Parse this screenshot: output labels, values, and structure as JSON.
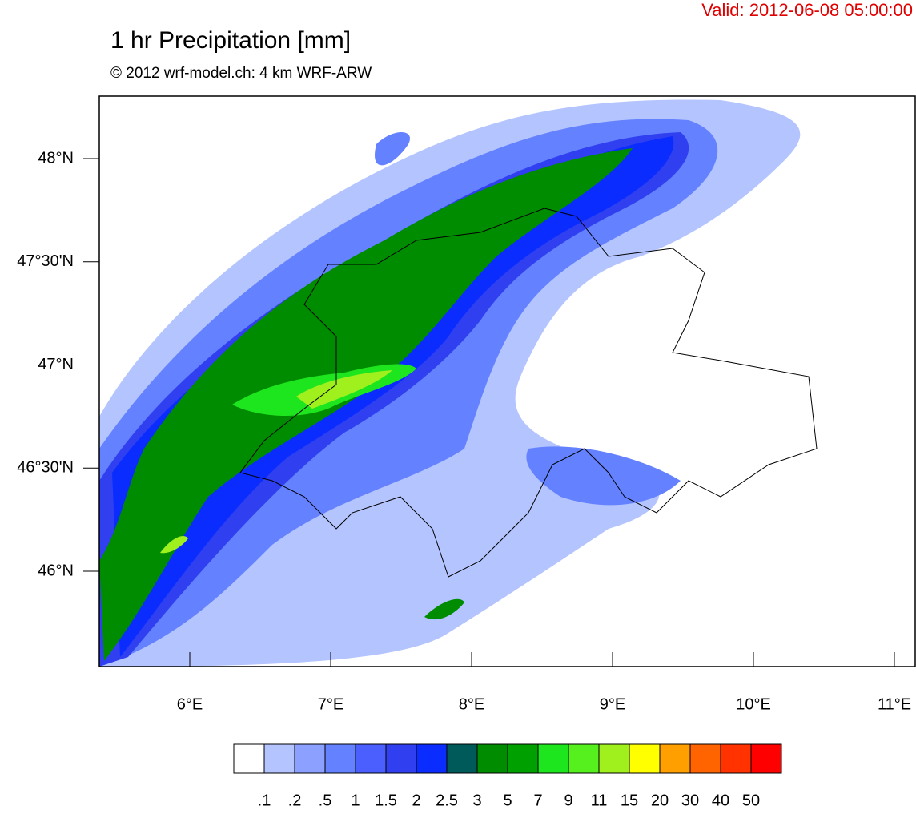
{
  "header": {
    "valid": "Valid: 2012-06-08 05:00:00",
    "title": "1 hr Precipitation [mm]",
    "subtitle": "© 2012 wrf-model.ch: 4 km WRF-ARW"
  },
  "map": {
    "lon_ticks": [
      "6°E",
      "7°E",
      "8°E",
      "9°E",
      "10°E",
      "11°E"
    ],
    "lat_ticks": [
      "48°N",
      "47°30'N",
      "47°N",
      "46°30'N",
      "46°N"
    ]
  },
  "legend": {
    "colors": [
      "#ffffff",
      "#b4c4ff",
      "#8ca0ff",
      "#6482ff",
      "#4b5fff",
      "#3040f0",
      "#0a2cff",
      "#005a5a",
      "#008c00",
      "#00a000",
      "#1ee61e",
      "#55f01e",
      "#a0f01e",
      "#ffff00",
      "#ffa000",
      "#ff6400",
      "#ff3200",
      "#ff0000"
    ],
    "labels": [
      ".1",
      ".2",
      ".5",
      "1",
      "1.5",
      "2",
      "2.5",
      "3",
      "5",
      "7",
      "9",
      "11",
      "15",
      "20",
      "30",
      "40",
      "50"
    ]
  }
}
